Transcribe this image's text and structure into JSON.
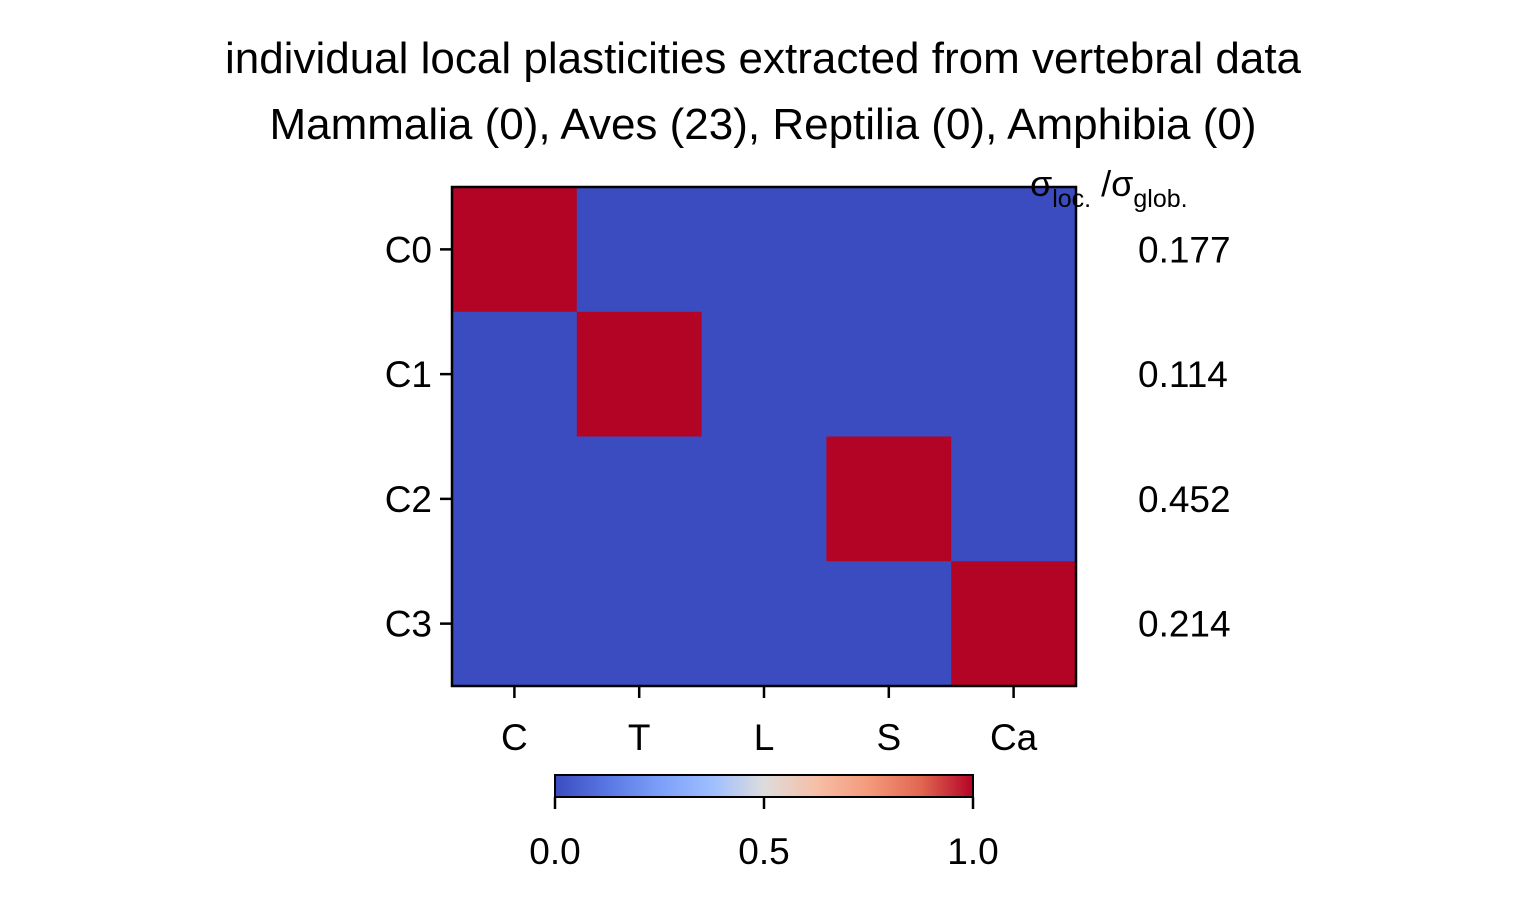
{
  "chart_data": {
    "type": "heatmap",
    "title_lines": [
      "individual local plasticities extracted from vertebral data",
      "Mammalia (0), Aves (23), Reptilia (0), Amphibia (0)"
    ],
    "xlabel": "",
    "ylabel": "",
    "x_categories": [
      "C",
      "T",
      "L",
      "S",
      "Ca"
    ],
    "y_categories": [
      "C0",
      "C1",
      "C2",
      "C3"
    ],
    "values": [
      [
        1,
        0,
        0,
        0,
        0
      ],
      [
        0,
        1,
        0,
        0,
        0
      ],
      [
        0,
        0,
        0,
        1,
        0
      ],
      [
        0,
        0,
        0,
        0,
        1
      ]
    ],
    "ratio_header": {
      "main": "σ",
      "sub1": "loc.",
      "sep": " /σ",
      "sub2": "glob."
    },
    "row_ratios": [
      "0.177",
      "0.114",
      "0.452",
      "0.214"
    ],
    "colormap": "coolwarm",
    "color_low": "#3b4cc0",
    "color_mid": "#dddddd",
    "color_high": "#b40426",
    "colorbar": {
      "range": [
        0.0,
        1.0
      ],
      "ticks": [
        "0.0",
        "0.5",
        "1.0"
      ],
      "orientation": "horizontal"
    }
  }
}
